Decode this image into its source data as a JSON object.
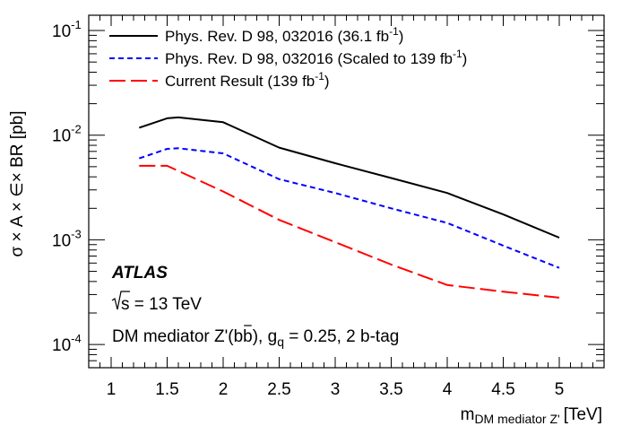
{
  "chart_data": {
    "type": "line",
    "xlabel": "m",
    "xlabel_sub": "DM mediator Z'",
    "xlabel_unit": "[TeV]",
    "ylabel": "σ × A × ∈× BR [pb]",
    "xlim": [
      0.8,
      5.4
    ],
    "ylim": [
      6e-05,
      0.14
    ],
    "y_scale": "log",
    "x_ticks": [
      "1",
      "1.5",
      "2",
      "2.5",
      "3",
      "3.5",
      "4",
      "4.5",
      "5"
    ],
    "y_ticks": [
      {
        "base": "10",
        "exp": "-1"
      },
      {
        "base": "10",
        "exp": "-2"
      },
      {
        "base": "10",
        "exp": "-3"
      },
      {
        "base": "10",
        "exp": "-4"
      }
    ],
    "series": [
      {
        "name": "Phys. Rev. D 98, 032016 (36.1 fb",
        "name_sup": "-1",
        "name_end": ")",
        "color": "#000000",
        "dash": "solid",
        "x": [
          1.25,
          1.5,
          1.6,
          2.0,
          2.5,
          3.0,
          3.5,
          4.0,
          4.5,
          5.0
        ],
        "y": [
          0.0118,
          0.0145,
          0.0148,
          0.0133,
          0.0076,
          0.0054,
          0.0039,
          0.0028,
          0.00175,
          0.00105
        ]
      },
      {
        "name": "Phys. Rev. D 98, 032016 (Scaled to 139 fb",
        "name_sup": "-1",
        "name_end": ")",
        "color": "#0000ff",
        "dash": "short-dash",
        "x": [
          1.25,
          1.5,
          1.6,
          2.0,
          2.5,
          3.0,
          3.5,
          4.0,
          4.5,
          5.0
        ],
        "y": [
          0.006,
          0.0074,
          0.0075,
          0.0067,
          0.0038,
          0.0028,
          0.002,
          0.00145,
          0.00088,
          0.00054
        ]
      },
      {
        "name": "Current Result (139 fb",
        "name_sup": "-1",
        "name_end": ")",
        "color": "#ff0000",
        "dash": "long-dash",
        "x": [
          1.25,
          1.5,
          2.0,
          2.5,
          3.0,
          3.5,
          4.0,
          4.5,
          5.0
        ],
        "y": [
          0.0051,
          0.0051,
          0.0029,
          0.00155,
          0.00095,
          0.00058,
          0.00037,
          0.00032,
          0.00028
        ]
      }
    ],
    "legend_position": "top-left",
    "grid": false
  },
  "annotations": {
    "experiment": "ATLAS",
    "energy_sqrt": "s",
    "energy_rest": " = 13 TeV",
    "process_pre": "DM mediator Z'(b",
    "process_bbar": "b",
    "process_mid": "), g",
    "process_sub": "q",
    "process_post": " = 0.25, 2 b-tag"
  }
}
